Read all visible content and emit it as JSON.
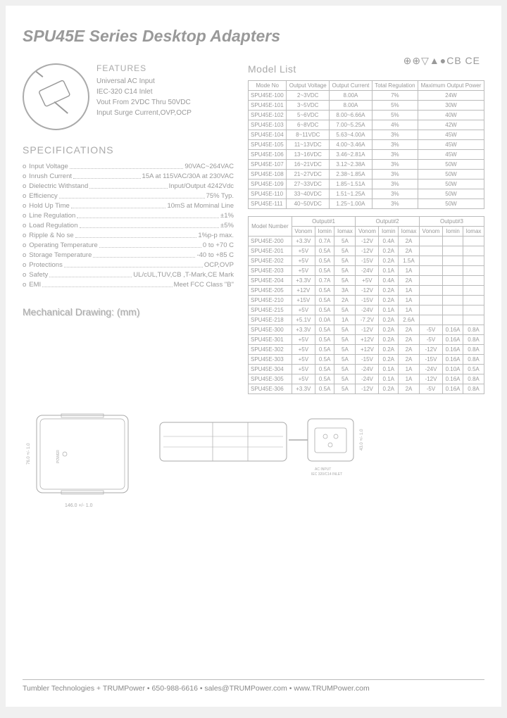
{
  "title": "SPU45E Series Desktop Adapters",
  "features": {
    "heading": "FEATURES",
    "items": [
      "Universal AC Input",
      "IEC-320 C14 Inlet",
      "Vout From 2VDC Thru 50VDC",
      "Input Surge Current,OVP,OCP"
    ]
  },
  "specs": {
    "heading": "SPECIFICATIONS",
    "rows": [
      {
        "label": "Input Voltage",
        "value": "90VAC~264VAC"
      },
      {
        "label": "Inrush Current",
        "value": "15A at 115VAC/30A at 230VAC"
      },
      {
        "label": "Dielectric Withstand",
        "value": "Input/Output 4242Vdc"
      },
      {
        "label": "Efficiency",
        "value": "75% Typ."
      },
      {
        "label": "Hold Up Time",
        "value": "10mS at Mominal Line"
      },
      {
        "label": "Line Regulation",
        "value": "±1%"
      },
      {
        "label": "Load Regulation",
        "value": "±5%"
      },
      {
        "label": "Ripple & No se",
        "value": "1%p-p max."
      },
      {
        "label": "Operating Temperature",
        "value": "0 to +70 C"
      },
      {
        "label": "Storage Temperature",
        "value": "-40 to +85 C"
      },
      {
        "label": "Protections",
        "value": "OCP,OVP"
      },
      {
        "label": "Safety",
        "value": "UL/cUL,TUV,CB ,T-Mark,CE Mark"
      },
      {
        "label": "EMI",
        "value": "Meet FCC Class \"B\""
      }
    ]
  },
  "modelList": {
    "heading": "Model List",
    "certText": "⊕⊕▽▲●CB CE",
    "table1": {
      "headers": [
        "Mode No",
        "Output Voltage",
        "Output Current",
        "Total Regulation",
        "Maximum Output Power"
      ],
      "rows": [
        [
          "SPU45E-100",
          "2~3VDC",
          "8.00A",
          "7%",
          "24W"
        ],
        [
          "SPU45E-101",
          "3~5VDC",
          "8.00A",
          "5%",
          "30W"
        ],
        [
          "SPU45E-102",
          "5~6VDC",
          "8.00~6.66A",
          "5%",
          "40W"
        ],
        [
          "SPU45E-103",
          "6~8VDC",
          "7.00~5.25A",
          "4%",
          "42W"
        ],
        [
          "SPU45E-104",
          "8~11VDC",
          "5.63~4.00A",
          "3%",
          "45W"
        ],
        [
          "SPU45E-105",
          "11~13VDC",
          "4.00~3.46A",
          "3%",
          "45W"
        ],
        [
          "SPU45E-106",
          "13~16VDC",
          "3.46~2.81A",
          "3%",
          "45W"
        ],
        [
          "SPU45E-107",
          "16~21VDC",
          "3.12~2.38A",
          "3%",
          "50W"
        ],
        [
          "SPU45E-108",
          "21~27VDC",
          "2.38~1.85A",
          "3%",
          "50W"
        ],
        [
          "SPU45E-109",
          "27~33VDC",
          "1.85~1.51A",
          "3%",
          "50W"
        ],
        [
          "SPU45E-110",
          "33~40VDC",
          "1.51~1.25A",
          "3%",
          "50W"
        ],
        [
          "SPU45E-111",
          "40~50VDC",
          "1.25~1.00A",
          "3%",
          "50W"
        ]
      ]
    },
    "table2": {
      "topHeaders": [
        "Model Number",
        "Output#1",
        "Output#2",
        "Output#3"
      ],
      "subHeaders": [
        "Vonom",
        "Iomin",
        "Iomax",
        "Vonom",
        "Iomin",
        "Iomax",
        "Vonom",
        "Iomin",
        "Iomax"
      ],
      "rows": [
        [
          "SPU45E-200",
          "+3.3V",
          "0.7A",
          "5A",
          "-12V",
          "0.4A",
          "2A",
          "",
          "",
          ""
        ],
        [
          "SPU45E-201",
          "+5V",
          "0.5A",
          "5A",
          "-12V",
          "0.2A",
          "2A",
          "",
          "",
          ""
        ],
        [
          "SPU45E-202",
          "+5V",
          "0.5A",
          "5A",
          "-15V",
          "0.2A",
          "1.5A",
          "",
          "",
          ""
        ],
        [
          "SPU45E-203",
          "+5V",
          "0.5A",
          "5A",
          "-24V",
          "0.1A",
          "1A",
          "",
          "",
          ""
        ],
        [
          "SPU45E-204",
          "+3.3V",
          "0.7A",
          "5A",
          "+5V",
          "0.4A",
          "2A",
          "",
          "",
          ""
        ],
        [
          "SPU45E-205",
          "+12V",
          "0.5A",
          "3A",
          "-12V",
          "0.2A",
          "1A",
          "",
          "",
          ""
        ],
        [
          "SPU45E-210",
          "+15V",
          "0.5A",
          "2A",
          "-15V",
          "0.2A",
          "1A",
          "",
          "",
          ""
        ],
        [
          "SPU45E-215",
          "+5V",
          "0.5A",
          "5A",
          "-24V",
          "0.1A",
          "1A",
          "",
          "",
          ""
        ],
        [
          "SPU45E-218",
          "+5.1V",
          "0.0A",
          "1A",
          "-7.2V",
          "0.2A",
          "2.6A",
          "",
          "",
          ""
        ],
        [
          "SPU45E-300",
          "+3.3V",
          "0.5A",
          "5A",
          "-12V",
          "0.2A",
          "2A",
          "-5V",
          "0.16A",
          "0.8A"
        ],
        [
          "SPU45E-301",
          "+5V",
          "0.5A",
          "5A",
          "+12V",
          "0.2A",
          "2A",
          "-5V",
          "0.16A",
          "0.8A"
        ],
        [
          "SPU45E-302",
          "+5V",
          "0.5A",
          "5A",
          "+12V",
          "0.2A",
          "2A",
          "-12V",
          "0.16A",
          "0.8A"
        ],
        [
          "SPU45E-303",
          "+5V",
          "0.5A",
          "5A",
          "-15V",
          "0.2A",
          "2A",
          "-15V",
          "0.16A",
          "0.8A"
        ],
        [
          "SPU45E-304",
          "+5V",
          "0.5A",
          "5A",
          "-24V",
          "0.1A",
          "1A",
          "-24V",
          "0.10A",
          "0.5A"
        ],
        [
          "SPU45E-305",
          "+5V",
          "0.5A",
          "5A",
          "-24V",
          "0.1A",
          "1A",
          "-12V",
          "0.16A",
          "0.8A"
        ],
        [
          "SPU45E-306",
          "+3.3V",
          "0.5A",
          "5A",
          "-12V",
          "0.2A",
          "2A",
          "-5V",
          "0.16A",
          "0.8A"
        ]
      ]
    }
  },
  "mechDrawing": {
    "heading": "Mechanical Drawing: (mm)",
    "dim1": "146.0 +/- 1.0",
    "dim2": "76.0 +/- 1.0",
    "dim3": "43.0 +/- 1.0",
    "acLabel": "AC INPUT\nIEC 320/C14 INLET",
    "powerLabel": "POWER"
  },
  "footer": "Tumbler Technologies + TRUMPower • 650-988-6616 • sales@TRUMPower.com • www.TRUMPower.com"
}
